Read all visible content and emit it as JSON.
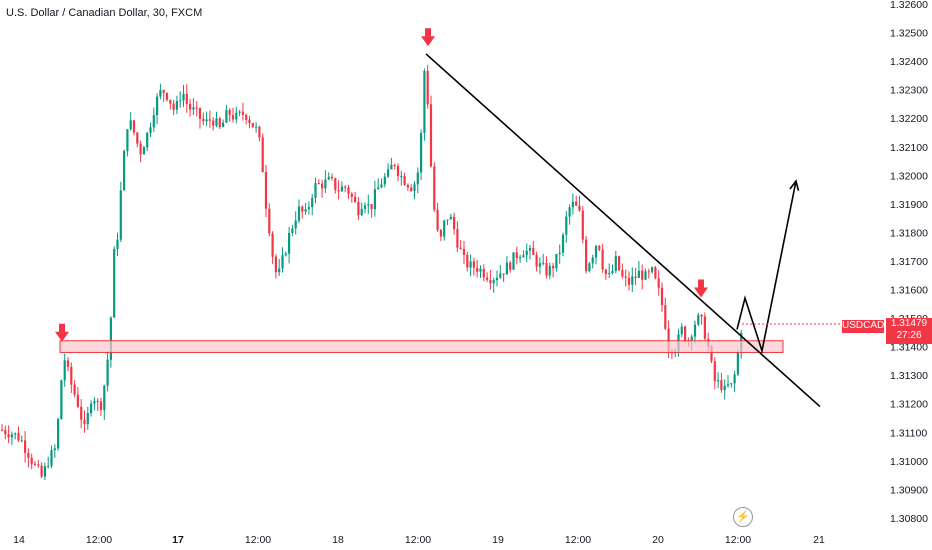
{
  "title": "U.S. Dollar / Canadian Dollar, 30, FXCM",
  "symbol_tag": "USDCAD",
  "price_tag": {
    "price": "1.31479",
    "countdown": "27:26"
  },
  "icons": {
    "flash": "lightning-icon"
  },
  "colors": {
    "up": "#089981",
    "down": "#f23645",
    "line": "#000000",
    "zone_fill": "#f8c8cc",
    "zone_border": "#f23645"
  },
  "chart_data": {
    "type": "candlestick",
    "title": "U.S. Dollar / Canadian Dollar, 30, FXCM",
    "y_ticks": [
      "1.32600",
      "1.32500",
      "1.32400",
      "1.32300",
      "1.32200",
      "1.32100",
      "1.32000",
      "1.31900",
      "1.31800",
      "1.31700",
      "1.31600",
      "1.31500",
      "1.31400",
      "1.31300",
      "1.31200",
      "1.31100",
      "1.31000",
      "1.30900",
      "1.30800"
    ],
    "x_ticks": [
      {
        "label": "14",
        "bold": false
      },
      {
        "label": "12:00",
        "bold": false
      },
      {
        "label": "17",
        "bold": true
      },
      {
        "label": "12:00",
        "bold": false
      },
      {
        "label": "18",
        "bold": false
      },
      {
        "label": "12:00",
        "bold": false
      },
      {
        "label": "19",
        "bold": false
      },
      {
        "label": "12:00",
        "bold": false
      },
      {
        "label": "20",
        "bold": false
      },
      {
        "label": "12:00",
        "bold": false
      },
      {
        "label": "21",
        "bold": false
      }
    ],
    "ylim": [
      1.3078,
      1.3262
    ],
    "path": [
      [
        0,
        1.3111
      ],
      [
        10,
        1.311
      ],
      [
        20,
        1.3108
      ],
      [
        28,
        1.3103
      ],
      [
        35,
        1.3098
      ],
      [
        42,
        1.3094
      ],
      [
        48,
        1.31
      ],
      [
        55,
        1.3104
      ],
      [
        60,
        1.312
      ],
      [
        63,
        1.3138
      ],
      [
        70,
        1.3128
      ],
      [
        78,
        1.312
      ],
      [
        85,
        1.311
      ],
      [
        92,
        1.3124
      ],
      [
        100,
        1.3118
      ],
      [
        106,
        1.313
      ],
      [
        110,
        1.3144
      ],
      [
        114,
        1.3172
      ],
      [
        118,
        1.318
      ],
      [
        122,
        1.32
      ],
      [
        128,
        1.322
      ],
      [
        134,
        1.3215
      ],
      [
        140,
        1.3208
      ],
      [
        148,
        1.3215
      ],
      [
        155,
        1.3225
      ],
      [
        162,
        1.323
      ],
      [
        168,
        1.3228
      ],
      [
        175,
        1.3222
      ],
      [
        182,
        1.323
      ],
      [
        188,
        1.3224
      ],
      [
        195,
        1.3222
      ],
      [
        205,
        1.3218
      ],
      [
        212,
        1.322
      ],
      [
        220,
        1.3216
      ],
      [
        228,
        1.3222
      ],
      [
        236,
        1.322
      ],
      [
        245,
        1.3222
      ],
      [
        252,
        1.3218
      ],
      [
        258,
        1.3215
      ],
      [
        262,
        1.3205
      ],
      [
        266,
        1.319
      ],
      [
        270,
        1.318
      ],
      [
        274,
        1.3168
      ],
      [
        278,
        1.3164
      ],
      [
        284,
        1.3172
      ],
      [
        290,
        1.318
      ],
      [
        298,
        1.3188
      ],
      [
        306,
        1.3186
      ],
      [
        314,
        1.3196
      ],
      [
        322,
        1.3197
      ],
      [
        330,
        1.3198
      ],
      [
        338,
        1.3195
      ],
      [
        346,
        1.3196
      ],
      [
        352,
        1.3192
      ],
      [
        358,
        1.3188
      ],
      [
        364,
        1.3192
      ],
      [
        370,
        1.3188
      ],
      [
        376,
        1.3194
      ],
      [
        382,
        1.3198
      ],
      [
        388,
        1.32
      ],
      [
        394,
        1.3205
      ],
      [
        400,
        1.32
      ],
      [
        406,
        1.3198
      ],
      [
        412,
        1.3196
      ],
      [
        416,
        1.3198
      ],
      [
        420,
        1.3205
      ],
      [
        424,
        1.3238
      ],
      [
        428,
        1.3225
      ],
      [
        432,
        1.3196
      ],
      [
        436,
        1.3182
      ],
      [
        440,
        1.3176
      ],
      [
        446,
        1.3186
      ],
      [
        452,
        1.3184
      ],
      [
        458,
        1.3176
      ],
      [
        464,
        1.317
      ],
      [
        470,
        1.3168
      ],
      [
        476,
        1.3168
      ],
      [
        484,
        1.3166
      ],
      [
        492,
        1.3164
      ],
      [
        500,
        1.3166
      ],
      [
        508,
        1.3168
      ],
      [
        516,
        1.3172
      ],
      [
        524,
        1.3174
      ],
      [
        532,
        1.3172
      ],
      [
        540,
        1.3168
      ],
      [
        548,
        1.3166
      ],
      [
        556,
        1.317
      ],
      [
        562,
        1.3176
      ],
      [
        568,
        1.3188
      ],
      [
        574,
        1.319
      ],
      [
        580,
        1.3186
      ],
      [
        586,
        1.3168
      ],
      [
        592,
        1.3172
      ],
      [
        598,
        1.3178
      ],
      [
        604,
        1.3166
      ],
      [
        610,
        1.3164
      ],
      [
        616,
        1.317
      ],
      [
        622,
        1.3164
      ],
      [
        628,
        1.3162
      ],
      [
        634,
        1.3164
      ],
      [
        640,
        1.3166
      ],
      [
        646,
        1.3164
      ],
      [
        652,
        1.3166
      ],
      [
        658,
        1.316
      ],
      [
        664,
        1.3152
      ],
      [
        668,
        1.314
      ],
      [
        672,
        1.314
      ],
      [
        676,
        1.314
      ],
      [
        682,
        1.3146
      ],
      [
        688,
        1.3142
      ],
      [
        694,
        1.3148
      ],
      [
        700,
        1.315
      ],
      [
        704,
        1.3146
      ],
      [
        708,
        1.314
      ],
      [
        712,
        1.3132
      ],
      [
        716,
        1.3126
      ],
      [
        720,
        1.3128
      ],
      [
        724,
        1.3124
      ],
      [
        728,
        1.3126
      ],
      [
        732,
        1.3126
      ],
      [
        736,
        1.3132
      ],
      [
        740,
        1.3144
      ],
      [
        742,
        1.3148
      ]
    ],
    "support_zone": {
      "low": 1.3139,
      "high": 1.3141
    },
    "trendline": {
      "start": [
        426,
        1.32425
      ],
      "end": [
        820,
        1.3119
      ]
    },
    "projection": [
      [
        737,
        1.3146
      ],
      [
        745,
        1.3157
      ],
      [
        762,
        1.31385
      ],
      [
        796,
        1.3198
      ]
    ],
    "arrow_markers": [
      {
        "x": 62,
        "price": 1.3141
      },
      {
        "x": 428,
        "price": 1.32445
      },
      {
        "x": 701,
        "price": 1.31565
      }
    ]
  }
}
